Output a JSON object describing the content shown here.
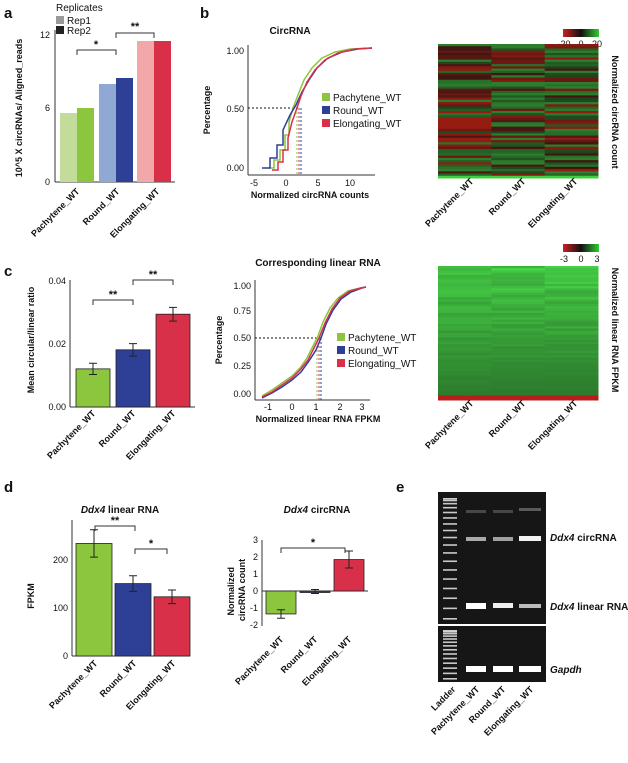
{
  "panels": [
    {
      "id": "a",
      "label": "a"
    },
    {
      "id": "b",
      "label": "b"
    },
    {
      "id": "c",
      "label": "c"
    },
    {
      "id": "d",
      "label": "d"
    },
    {
      "id": "e",
      "label": "e"
    }
  ],
  "colors": {
    "pachytene_light": "#c2dc9a",
    "pachytene": "#8cc63f",
    "round_light": "#8fa8d4",
    "round": "#2e3f96",
    "elongating_light": "#f2a8a8",
    "elongating": "#d9304a",
    "heat_neg": "#cc2020",
    "heat_pos": "#33cc33"
  },
  "chart_data": [
    {
      "id": "a",
      "type": "bar",
      "legend_title": "Replicates",
      "series": [
        {
          "name": "Rep1",
          "values": [
            5.6,
            7.8,
            11.5
          ]
        },
        {
          "name": "Rep2",
          "values": [
            5.9,
            8.3,
            11.5
          ]
        }
      ],
      "categories": [
        "Pachytene_WT",
        "Round_WT",
        "Elongating_WT"
      ],
      "ylabel": "10^5 X circRNAs/ Aligned_reads",
      "yticks": [
        "0",
        "6",
        "12"
      ],
      "ylim": [
        0,
        12.5
      ],
      "significance": [
        "*",
        "**"
      ]
    },
    {
      "id": "b_cdf",
      "type": "line",
      "title": "CircRNA",
      "xlabel": "Normalized circRNA counts",
      "ylabel": "Percentage",
      "xticks": [
        "-5",
        "0",
        "5",
        "10"
      ],
      "yticks": [
        "0.00",
        "0.50",
        "1.00"
      ],
      "xlim": [
        -5,
        15
      ],
      "ylim": [
        0,
        1
      ],
      "series": [
        {
          "name": "Pachytene_WT",
          "median": 1.8
        },
        {
          "name": "Round_WT",
          "median": 2.4
        },
        {
          "name": "Elongating_WT",
          "median": 2.1
        }
      ],
      "reference_y": 0.5
    },
    {
      "id": "b_heatmap",
      "type": "heatmap",
      "columns": [
        "Pachytene_WT",
        "Round_WT",
        "Elongating_WT"
      ],
      "scale": [
        "-20",
        "0",
        "20"
      ],
      "side_label": "Normalized circRNA count"
    },
    {
      "id": "c_bar",
      "type": "bar",
      "categories": [
        "Pachytene_WT",
        "Round_WT",
        "Elongating_WT"
      ],
      "values": [
        0.0122,
        0.0183,
        0.0297
      ],
      "errors": [
        0.0018,
        0.002,
        0.0022
      ],
      "ylabel": "Mean circular/linear ratio",
      "yticks": [
        "0.00",
        "0.02",
        "0.04"
      ],
      "ylim": [
        0,
        0.04
      ],
      "significance": [
        "**",
        "**"
      ]
    },
    {
      "id": "c_cdf",
      "type": "line",
      "title": "Corresponding linear RNA",
      "xlabel": "Normalized linear RNA FPKM",
      "ylabel": "Percentage",
      "xticks": [
        "-1",
        "0",
        "1",
        "2",
        "3"
      ],
      "yticks": [
        "0.00",
        "0.25",
        "0.50",
        "0.75",
        "1.00"
      ],
      "xlim": [
        -1.5,
        3.2
      ],
      "ylim": [
        0,
        1
      ],
      "series": [
        {
          "name": "Pachytene_WT",
          "median": 1.05
        },
        {
          "name": "Round_WT",
          "median": 1.15
        },
        {
          "name": "Elongating_WT",
          "median": 1.1
        }
      ],
      "reference_y": 0.5
    },
    {
      "id": "c_heatmap",
      "type": "heatmap",
      "columns": [
        "Pachytene_WT",
        "Round_WT",
        "Elongating_WT"
      ],
      "scale": [
        "-3",
        "0",
        "3"
      ],
      "side_label": "Normalized linear RNA FPKM"
    },
    {
      "id": "d_linear",
      "type": "bar",
      "title": "Ddx4 linear RNA",
      "categories": [
        "Pachytene_WT",
        "Round_WT",
        "Elongating_WT"
      ],
      "values": [
        230,
        148,
        121
      ],
      "errors": [
        28,
        16,
        14
      ],
      "ylabel": "FPKM",
      "yticks": [
        "0",
        "100",
        "200"
      ],
      "ylim": [
        0,
        280
      ],
      "significance": [
        "**",
        "*"
      ]
    },
    {
      "id": "d_circ",
      "type": "bar",
      "title": "Ddx4 circRNA",
      "categories": [
        "Pachytene_WT",
        "Round_WT",
        "Elongating_WT"
      ],
      "values": [
        -1.35,
        -0.03,
        1.85
      ],
      "errors": [
        0.25,
        0.12,
        0.5
      ],
      "ylabel": "Normalized circRNA count",
      "yticks": [
        "-2",
        "-1",
        "0",
        "1",
        "2",
        "3"
      ],
      "ylim": [
        -2,
        3
      ],
      "significance": [
        "*"
      ]
    }
  ],
  "gel": {
    "lanes": [
      "Ladder",
      "Pachytene_WT",
      "Round_WT",
      "Elongating_WT"
    ],
    "band_labels": [
      {
        "gene": "Ddx4",
        "suffix": " circRNA"
      },
      {
        "gene": "Ddx4",
        "suffix": " linear RNA"
      },
      {
        "gene": "Gapdh",
        "suffix": ""
      }
    ]
  }
}
